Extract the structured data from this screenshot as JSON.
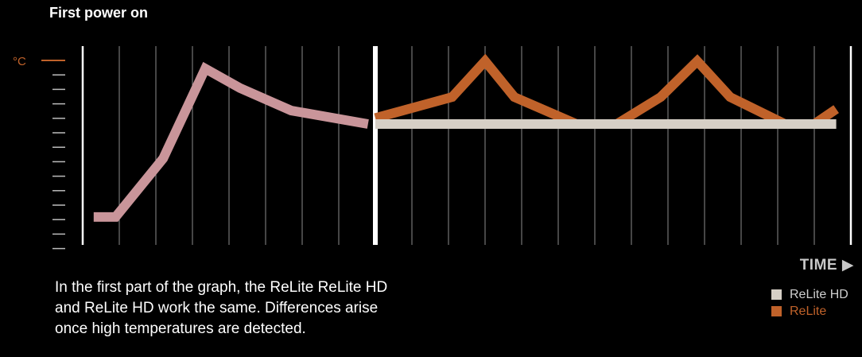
{
  "title": "First power on",
  "description": "In the first part of the graph, the ReLite ReLite HD and ReLite HD work the same. Differences arise once high temperatures are detected.",
  "colors": {
    "background": "#000000",
    "relite": "#c0622a",
    "relite_hd": "#d6cfc6",
    "shared": "#c9959a",
    "gridline": "#8c8c8c",
    "divider": "#ffffff"
  },
  "chart_data": {
    "type": "line",
    "ylabel": "°C",
    "xlabel": "TIME",
    "x_ticks": [
      0,
      1,
      2,
      3,
      4,
      5,
      6,
      7,
      8,
      9,
      10,
      11,
      12,
      13,
      14,
      15,
      16,
      17,
      18,
      19,
      20
    ],
    "divider_at_x": 8,
    "y_ticks": 14,
    "ylim": [
      0,
      13
    ],
    "xlim": [
      0,
      20.6
    ],
    "legend_position": "bottom-right",
    "shared_segment": {
      "x": [
        0.3,
        0.9,
        2.2,
        3.35,
        4.3,
        5.7,
        7.8
      ],
      "y": [
        1.6,
        1.6,
        5.5,
        11.5,
        10.2,
        8.7,
        7.8
      ]
    },
    "series": [
      {
        "name": "ReLite HD",
        "x": [
          8.0,
          20.6
        ],
        "y": [
          7.8,
          7.8
        ]
      },
      {
        "name": "ReLite",
        "x": [
          8.0,
          10.1,
          11.0,
          11.8,
          13.5,
          14.6,
          15.8,
          16.8,
          17.7,
          19.2,
          20.0,
          20.6
        ],
        "y": [
          8.2,
          9.6,
          12.0,
          9.6,
          7.8,
          7.8,
          9.6,
          12.0,
          9.6,
          7.8,
          7.8,
          8.8
        ]
      }
    ],
    "legend": [
      "ReLite HD",
      "ReLite"
    ]
  }
}
